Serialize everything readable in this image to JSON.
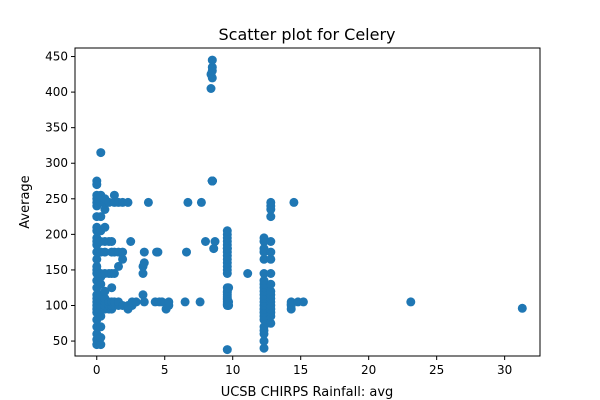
{
  "chart_data": {
    "type": "scatter",
    "title": "Scatter plot for Celery",
    "xlabel": "UCSB CHIRPS Rainfall: avg",
    "ylabel": "Average",
    "xlim": [
      -1.6,
      32.6
    ],
    "ylim": [
      29,
      462
    ],
    "xticks": [
      0,
      5,
      10,
      15,
      20,
      25,
      30
    ],
    "yticks": [
      50,
      100,
      150,
      200,
      250,
      300,
      350,
      400,
      450
    ],
    "grid": false,
    "legend": "none",
    "color": "#1f77b4",
    "series": [
      {
        "x": [
          0.0,
          0.0,
          0.0,
          0.0,
          0.0,
          0.0,
          0.0,
          0.0,
          0.0,
          0.0,
          0.0,
          0.0,
          0.0,
          0.0,
          0.0,
          0.0,
          0.0,
          0.0,
          0.0,
          0.0,
          0.0,
          0.0,
          0.0,
          0.0,
          0.0,
          0.0,
          0.0,
          0.0,
          0.0,
          0.0,
          0.3,
          0.3,
          0.3,
          0.3,
          0.3,
          0.3,
          0.3,
          0.3,
          0.3,
          0.3,
          0.3,
          0.3,
          0.3,
          0.3,
          0.3,
          0.3,
          0.3,
          0.3,
          0.6,
          0.6,
          0.6,
          0.6,
          0.6,
          0.6,
          0.6,
          0.6,
          0.6,
          0.6,
          0.6,
          0.6,
          0.9,
          0.9,
          0.9,
          0.9,
          0.9,
          0.9,
          1.1,
          1.1,
          1.1,
          1.1,
          1.1,
          1.1,
          1.1,
          1.3,
          1.3,
          1.3,
          1.3,
          1.3,
          1.3,
          1.6,
          1.6,
          1.6,
          1.6,
          1.6,
          1.9,
          1.9,
          1.9,
          1.9,
          2.3,
          2.3,
          2.3,
          2.5,
          2.6,
          2.6,
          2.9,
          3.4,
          3.4,
          3.4,
          3.5,
          3.5,
          3.5,
          3.8,
          4.3,
          4.4,
          4.5,
          4.6,
          4.8,
          5.1,
          5.3,
          5.3,
          6.5,
          6.6,
          6.7,
          7.6,
          7.7,
          8.0,
          8.4,
          8.4,
          8.5,
          8.5,
          8.5,
          8.5,
          8.5,
          8.5,
          8.5,
          8.5,
          8.5,
          8.5,
          8.5,
          8.5,
          8.5,
          8.5,
          8.6,
          8.7,
          9.6,
          9.6,
          9.6,
          9.6,
          9.6,
          9.6,
          9.6,
          9.6,
          9.6,
          9.6,
          9.6,
          9.6,
          9.6,
          9.6,
          9.6,
          9.6,
          9.6,
          9.6,
          9.6,
          9.6,
          9.6,
          9.6,
          9.6,
          9.6,
          9.6,
          9.7,
          9.7,
          9.7,
          11.1,
          12.3,
          12.3,
          12.3,
          12.3,
          12.3,
          12.3,
          12.3,
          12.3,
          12.3,
          12.3,
          12.3,
          12.3,
          12.3,
          12.3,
          12.3,
          12.3,
          12.3,
          12.3,
          12.3,
          12.3,
          12.3,
          12.3,
          12.3,
          12.8,
          12.8,
          12.8,
          12.8,
          12.8,
          12.8,
          12.8,
          12.8,
          12.8,
          12.8,
          12.8,
          12.8,
          12.8,
          12.8,
          12.8,
          12.8,
          12.8,
          12.8,
          14.3,
          14.3,
          14.3,
          14.3,
          14.5,
          14.8,
          15.2,
          23.1,
          31.3
        ],
        "y": [
          45,
          52,
          60,
          70,
          80,
          90,
          95,
          100,
          105,
          110,
          115,
          125,
          135,
          145,
          150,
          155,
          165,
          175,
          185,
          190,
          195,
          205,
          210,
          225,
          240,
          245,
          250,
          255,
          270,
          275,
          45,
          55,
          70,
          85,
          95,
          100,
          105,
          115,
          130,
          140,
          145,
          175,
          190,
          205,
          225,
          245,
          255,
          315,
          95,
          100,
          105,
          110,
          120,
          145,
          175,
          190,
          210,
          235,
          245,
          250,
          95,
          100,
          105,
          145,
          190,
          245,
          95,
          100,
          105,
          125,
          145,
          175,
          190,
          100,
          105,
          145,
          175,
          245,
          255,
          100,
          105,
          155,
          175,
          245,
          100,
          165,
          175,
          245,
          95,
          100,
          245,
          190,
          100,
          105,
          105,
          115,
          145,
          155,
          105,
          160,
          175,
          245,
          105,
          175,
          175,
          105,
          105,
          95,
          100,
          105,
          105,
          175,
          245,
          105,
          245,
          190,
          405,
          425,
          420,
          430,
          435,
          445,
          275,
          275,
          275,
          275,
          275,
          275,
          275,
          275,
          275,
          275,
          180,
          190,
          38,
          100,
          102,
          105,
          108,
          110,
          112,
          115,
          118,
          120,
          125,
          145,
          150,
          155,
          160,
          165,
          170,
          175,
          180,
          185,
          190,
          195,
          200,
          205,
          180,
          100,
          105,
          125,
          145,
          40,
          50,
          60,
          65,
          70,
          80,
          85,
          90,
          95,
          100,
          105,
          110,
          115,
          120,
          125,
          130,
          135,
          145,
          165,
          175,
          180,
          190,
          195,
          75,
          85,
          90,
          95,
          100,
          105,
          110,
          115,
          120,
          130,
          145,
          165,
          175,
          190,
          225,
          235,
          240,
          245,
          95,
          100,
          105,
          102,
          245,
          105,
          105,
          105,
          96
        ]
      }
    ]
  }
}
